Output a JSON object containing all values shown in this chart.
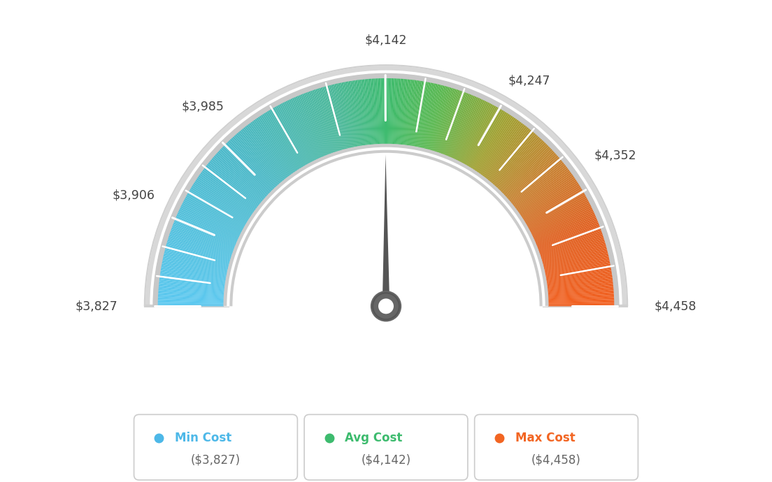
{
  "min_val": 3827,
  "avg_val": 4142,
  "max_val": 4458,
  "tick_labels": [
    "$3,827",
    "$3,906",
    "$3,985",
    "$4,142",
    "$4,247",
    "$4,352",
    "$4,458"
  ],
  "tick_values": [
    3827,
    3906,
    3985,
    4142,
    4247,
    4352,
    4458
  ],
  "legend": [
    {
      "label": "Min Cost",
      "value": "($3,827)",
      "color": "#4db8e8"
    },
    {
      "label": "Avg Cost",
      "value": "($4,142)",
      "color": "#3dbb6e"
    },
    {
      "label": "Max Cost",
      "value": "($4,458)",
      "color": "#f26522"
    }
  ],
  "background_color": "#ffffff",
  "needle_value": 4142,
  "color_stops": [
    [
      0.0,
      "#5bc8f0"
    ],
    [
      0.25,
      "#4ab8c8"
    ],
    [
      0.42,
      "#4bb89a"
    ],
    [
      0.5,
      "#3dbb6e"
    ],
    [
      0.58,
      "#5ab850"
    ],
    [
      0.68,
      "#a0a030"
    ],
    [
      0.78,
      "#c88030"
    ],
    [
      0.88,
      "#e06020"
    ],
    [
      1.0,
      "#f26020"
    ]
  ]
}
